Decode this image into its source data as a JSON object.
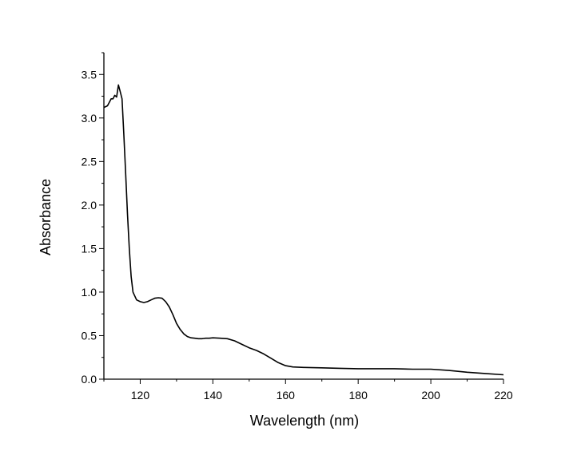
{
  "chart_data": {
    "type": "line",
    "title": "",
    "xlabel": "Wavelength (nm)",
    "ylabel": "Absorbance",
    "xlim": [
      110,
      220
    ],
    "ylim": [
      0,
      3.75
    ],
    "xticks": [
      120,
      140,
      160,
      180,
      200,
      220
    ],
    "xtick_labels": [
      "120",
      "140",
      "160",
      "180",
      "200",
      "220"
    ],
    "yticks": [
      0,
      0.5,
      1.0,
      1.5,
      2.0,
      2.5,
      3.0,
      3.5
    ],
    "ytick_labels": [
      "0.0",
      "0.5",
      "1.0",
      "1.5",
      "2.0",
      "2.5",
      "3.0",
      "3.5"
    ],
    "grid": false,
    "legend": "none",
    "line_color": "#000000",
    "series": [
      {
        "x": [
          110,
          111,
          112,
          112.5,
          113,
          113.5,
          114,
          114.5,
          115,
          115.5,
          116,
          116.5,
          117,
          117.5,
          118,
          119,
          120,
          121,
          122,
          123,
          124,
          125,
          126,
          127,
          128,
          129,
          130,
          131,
          132,
          133,
          134,
          135,
          136,
          137,
          138,
          139,
          140,
          142,
          144,
          146,
          148,
          150,
          152,
          154,
          156,
          158,
          160,
          162,
          165,
          170,
          175,
          180,
          185,
          190,
          195,
          200,
          205,
          210,
          215,
          220
        ],
        "y": [
          3.12,
          3.14,
          3.22,
          3.22,
          3.26,
          3.24,
          3.38,
          3.3,
          3.22,
          2.8,
          2.35,
          1.9,
          1.5,
          1.18,
          1.0,
          0.91,
          0.89,
          0.88,
          0.89,
          0.91,
          0.93,
          0.935,
          0.93,
          0.89,
          0.83,
          0.74,
          0.64,
          0.57,
          0.52,
          0.49,
          0.475,
          0.47,
          0.465,
          0.465,
          0.47,
          0.47,
          0.475,
          0.47,
          0.465,
          0.44,
          0.4,
          0.36,
          0.33,
          0.29,
          0.24,
          0.19,
          0.155,
          0.14,
          0.135,
          0.13,
          0.125,
          0.12,
          0.12,
          0.12,
          0.115,
          0.115,
          0.1,
          0.08,
          0.065,
          0.05
        ]
      }
    ]
  }
}
